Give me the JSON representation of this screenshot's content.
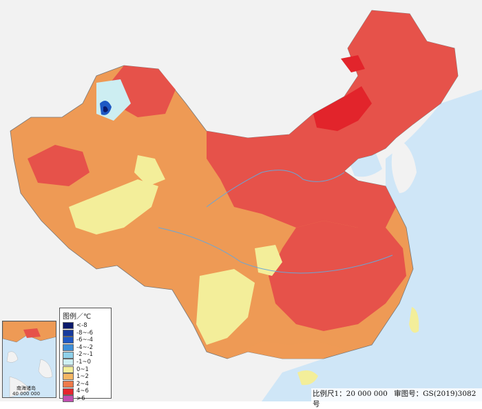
{
  "map": {
    "legend": {
      "title": "图例／℃",
      "items": [
        {
          "label": "<-8",
          "color": "#0b1a6b"
        },
        {
          "label": "-8~-6",
          "color": "#173a9c"
        },
        {
          "label": "-6~-4",
          "color": "#1e58c4"
        },
        {
          "label": "-4~-2",
          "color": "#3d8fd9"
        },
        {
          "label": "-2~-1",
          "color": "#8fd0ea"
        },
        {
          "label": "-1~0",
          "color": "#cdeef2"
        },
        {
          "label": "0~1",
          "color": "#f3ee9a"
        },
        {
          "label": "1~2",
          "color": "#f4b663"
        },
        {
          "label": "2~4",
          "color": "#ee7a4a"
        },
        {
          "label": "4~6",
          "color": "#e5262e"
        },
        {
          "label": ">6",
          "color": "#c04fb1"
        }
      ]
    },
    "inset": {
      "label_line1": "南海诸岛",
      "label_line2": "40 000 000"
    },
    "footer": {
      "scale": "比例尺1：20 000 000",
      "review_no": "审图号：GS(2019)3082号"
    },
    "colors": {
      "sea": "#cfe6f7",
      "land_outside": "#f2f2f2",
      "warm_1_2": "#ee9a55",
      "warm_2_4": "#e96a52",
      "hot_4_6": "#e2242b",
      "mild_0_1": "#f3ee9a"
    }
  }
}
